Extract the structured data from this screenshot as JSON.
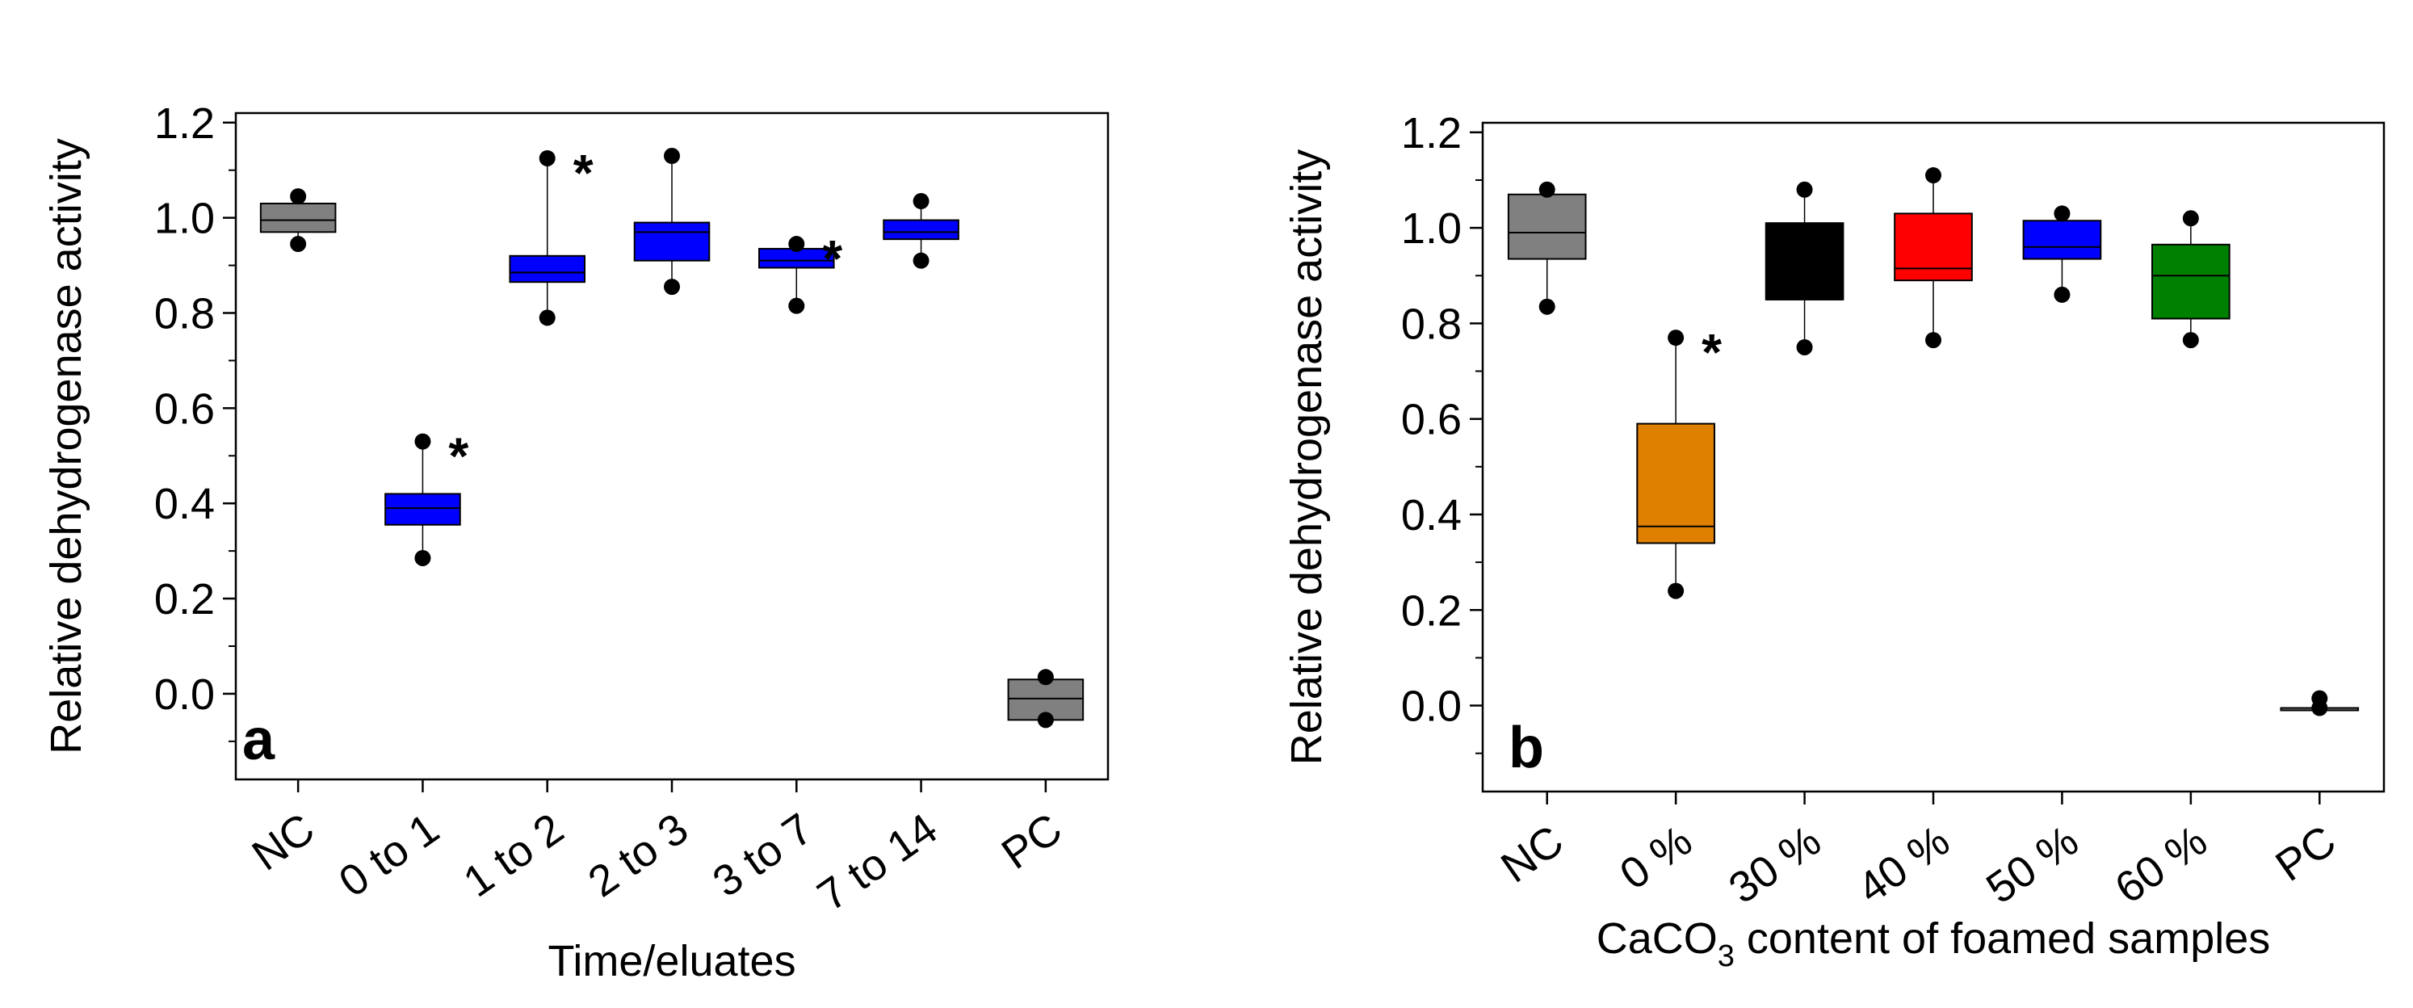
{
  "chart_data": [
    {
      "type": "box",
      "panel_label": "a",
      "xlabel": "Time/eluates",
      "ylabel": "Relative dehydrogenase activity",
      "ylim": [
        -0.18,
        1.22
      ],
      "yticks": [
        "0.0",
        "0.2",
        "0.4",
        "0.6",
        "0.8",
        "1.0",
        "1.2"
      ],
      "yticks_values": [
        0.0,
        0.2,
        0.4,
        0.6,
        0.8,
        1.0,
        1.2
      ],
      "grid": false,
      "categories": [
        "NC",
        "0 to 1",
        "1 to 2",
        "2 to 3",
        "3 to 7",
        "7 to 14",
        "PC"
      ],
      "boxes": [
        {
          "category": "NC",
          "q1": 0.97,
          "median": 0.995,
          "q3": 1.03,
          "min": 0.945,
          "max": 1.045,
          "color": "#808080",
          "significant": false
        },
        {
          "category": "0 to 1",
          "q1": 0.355,
          "median": 0.39,
          "q3": 0.42,
          "min": 0.285,
          "max": 0.53,
          "color": "#0000ff",
          "significant": true
        },
        {
          "category": "1 to 2",
          "q1": 0.865,
          "median": 0.885,
          "q3": 0.92,
          "min": 0.79,
          "max": 1.125,
          "color": "#0000ff",
          "significant": true
        },
        {
          "category": "2 to 3",
          "q1": 0.91,
          "median": 0.97,
          "q3": 0.99,
          "min": 0.855,
          "max": 1.13,
          "color": "#0000ff",
          "significant": false
        },
        {
          "category": "3 to 7",
          "q1": 0.895,
          "median": 0.91,
          "q3": 0.935,
          "min": 0.815,
          "max": 0.945,
          "color": "#0000ff",
          "significant": true
        },
        {
          "category": "7 to 14",
          "q1": 0.955,
          "median": 0.97,
          "q3": 0.995,
          "min": 0.91,
          "max": 1.035,
          "color": "#0000ff",
          "significant": false
        },
        {
          "category": "PC",
          "q1": -0.055,
          "median": -0.01,
          "q3": 0.03,
          "min": -0.055,
          "max": 0.035,
          "color": "#808080",
          "significant": false
        }
      ],
      "annotation": "*"
    },
    {
      "type": "box",
      "panel_label": "b",
      "xlabel": "CaCO",
      "xlabel_subscript": "3",
      "xlabel_suffix": " content of foamed samples",
      "ylabel": "Relative dehydrogenase activity",
      "ylim": [
        -0.18,
        1.22
      ],
      "yticks": [
        "0.0",
        "0.2",
        "0.4",
        "0.6",
        "0.8",
        "1.0",
        "1.2"
      ],
      "yticks_values": [
        0.0,
        0.2,
        0.4,
        0.6,
        0.8,
        1.0,
        1.2
      ],
      "grid": false,
      "categories": [
        "NC",
        "0 %",
        "30 %",
        "40 %",
        "50 %",
        "60 %",
        "PC"
      ],
      "boxes": [
        {
          "category": "NC",
          "q1": 0.935,
          "median": 0.99,
          "q3": 1.07,
          "min": 0.835,
          "max": 1.08,
          "color": "#808080",
          "significant": false
        },
        {
          "category": "0 %",
          "q1": 0.34,
          "median": 0.375,
          "q3": 0.59,
          "min": 0.24,
          "max": 0.77,
          "color": "#e08000",
          "significant": true
        },
        {
          "category": "30 %",
          "q1": 0.85,
          "median": 0.85,
          "q3": 1.01,
          "min": 0.75,
          "max": 1.08,
          "color": "#000000",
          "significant": false
        },
        {
          "category": "40 %",
          "q1": 0.89,
          "median": 0.915,
          "q3": 1.03,
          "min": 0.765,
          "max": 1.11,
          "color": "#ff0000",
          "significant": false
        },
        {
          "category": "50 %",
          "q1": 0.935,
          "median": 0.96,
          "q3": 1.015,
          "min": 0.86,
          "max": 1.03,
          "color": "#0000ff",
          "significant": false
        },
        {
          "category": "60 %",
          "q1": 0.81,
          "median": 0.9,
          "q3": 0.965,
          "min": 0.765,
          "max": 1.02,
          "color": "#008000",
          "significant": false
        },
        {
          "category": "PC",
          "q1": -0.005,
          "median": -0.005,
          "q3": -0.005,
          "min": -0.005,
          "max": 0.015,
          "color": "#808080",
          "significant": false
        }
      ],
      "annotation": "*"
    }
  ]
}
